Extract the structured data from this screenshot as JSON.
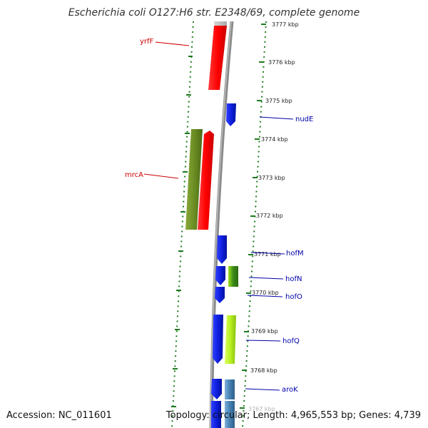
{
  "title": "Escherichia coli O127:H6 str. E2348/69, complete genome",
  "footer": {
    "accession": "Accession: NC_011601",
    "topology": "Topology: circular; Length: 4,965,553 bp; Genes: 4,739"
  },
  "colors": {
    "backbone": "#8a8a8a",
    "tick_dots": "#1e7a1e",
    "forward_label": "#cc0000",
    "reverse_label": "#0000aa",
    "red": "#ff1010",
    "blue": "#1020e0",
    "olive": "#6b8e23",
    "lime": "#b8f020",
    "steel": "#4682b4"
  },
  "ticks": [
    "3777 kbp",
    "3776 kbp",
    "3775 kbp",
    "3774 kbp",
    "3773 kbp",
    "3772 kbp",
    "3771 kbp",
    "3770 kbp",
    "3769 kbp",
    "3768 kbp",
    "3767 kbp"
  ],
  "genes": [
    {
      "name": "yrfF",
      "strand": "forward",
      "color": "red"
    },
    {
      "name": "nudE",
      "strand": "reverse",
      "color": "blue"
    },
    {
      "name": "mrcA",
      "strand": "forward",
      "color": "olive"
    },
    {
      "name": "hofM",
      "strand": "reverse",
      "color": "blue"
    },
    {
      "name": "hofN",
      "strand": "reverse",
      "color": "blue"
    },
    {
      "name": "hofO",
      "strand": "reverse",
      "color": "blue"
    },
    {
      "name": "hofQ",
      "strand": "reverse",
      "color": "blue"
    },
    {
      "name": "aroK",
      "strand": "reverse",
      "color": "blue"
    }
  ]
}
